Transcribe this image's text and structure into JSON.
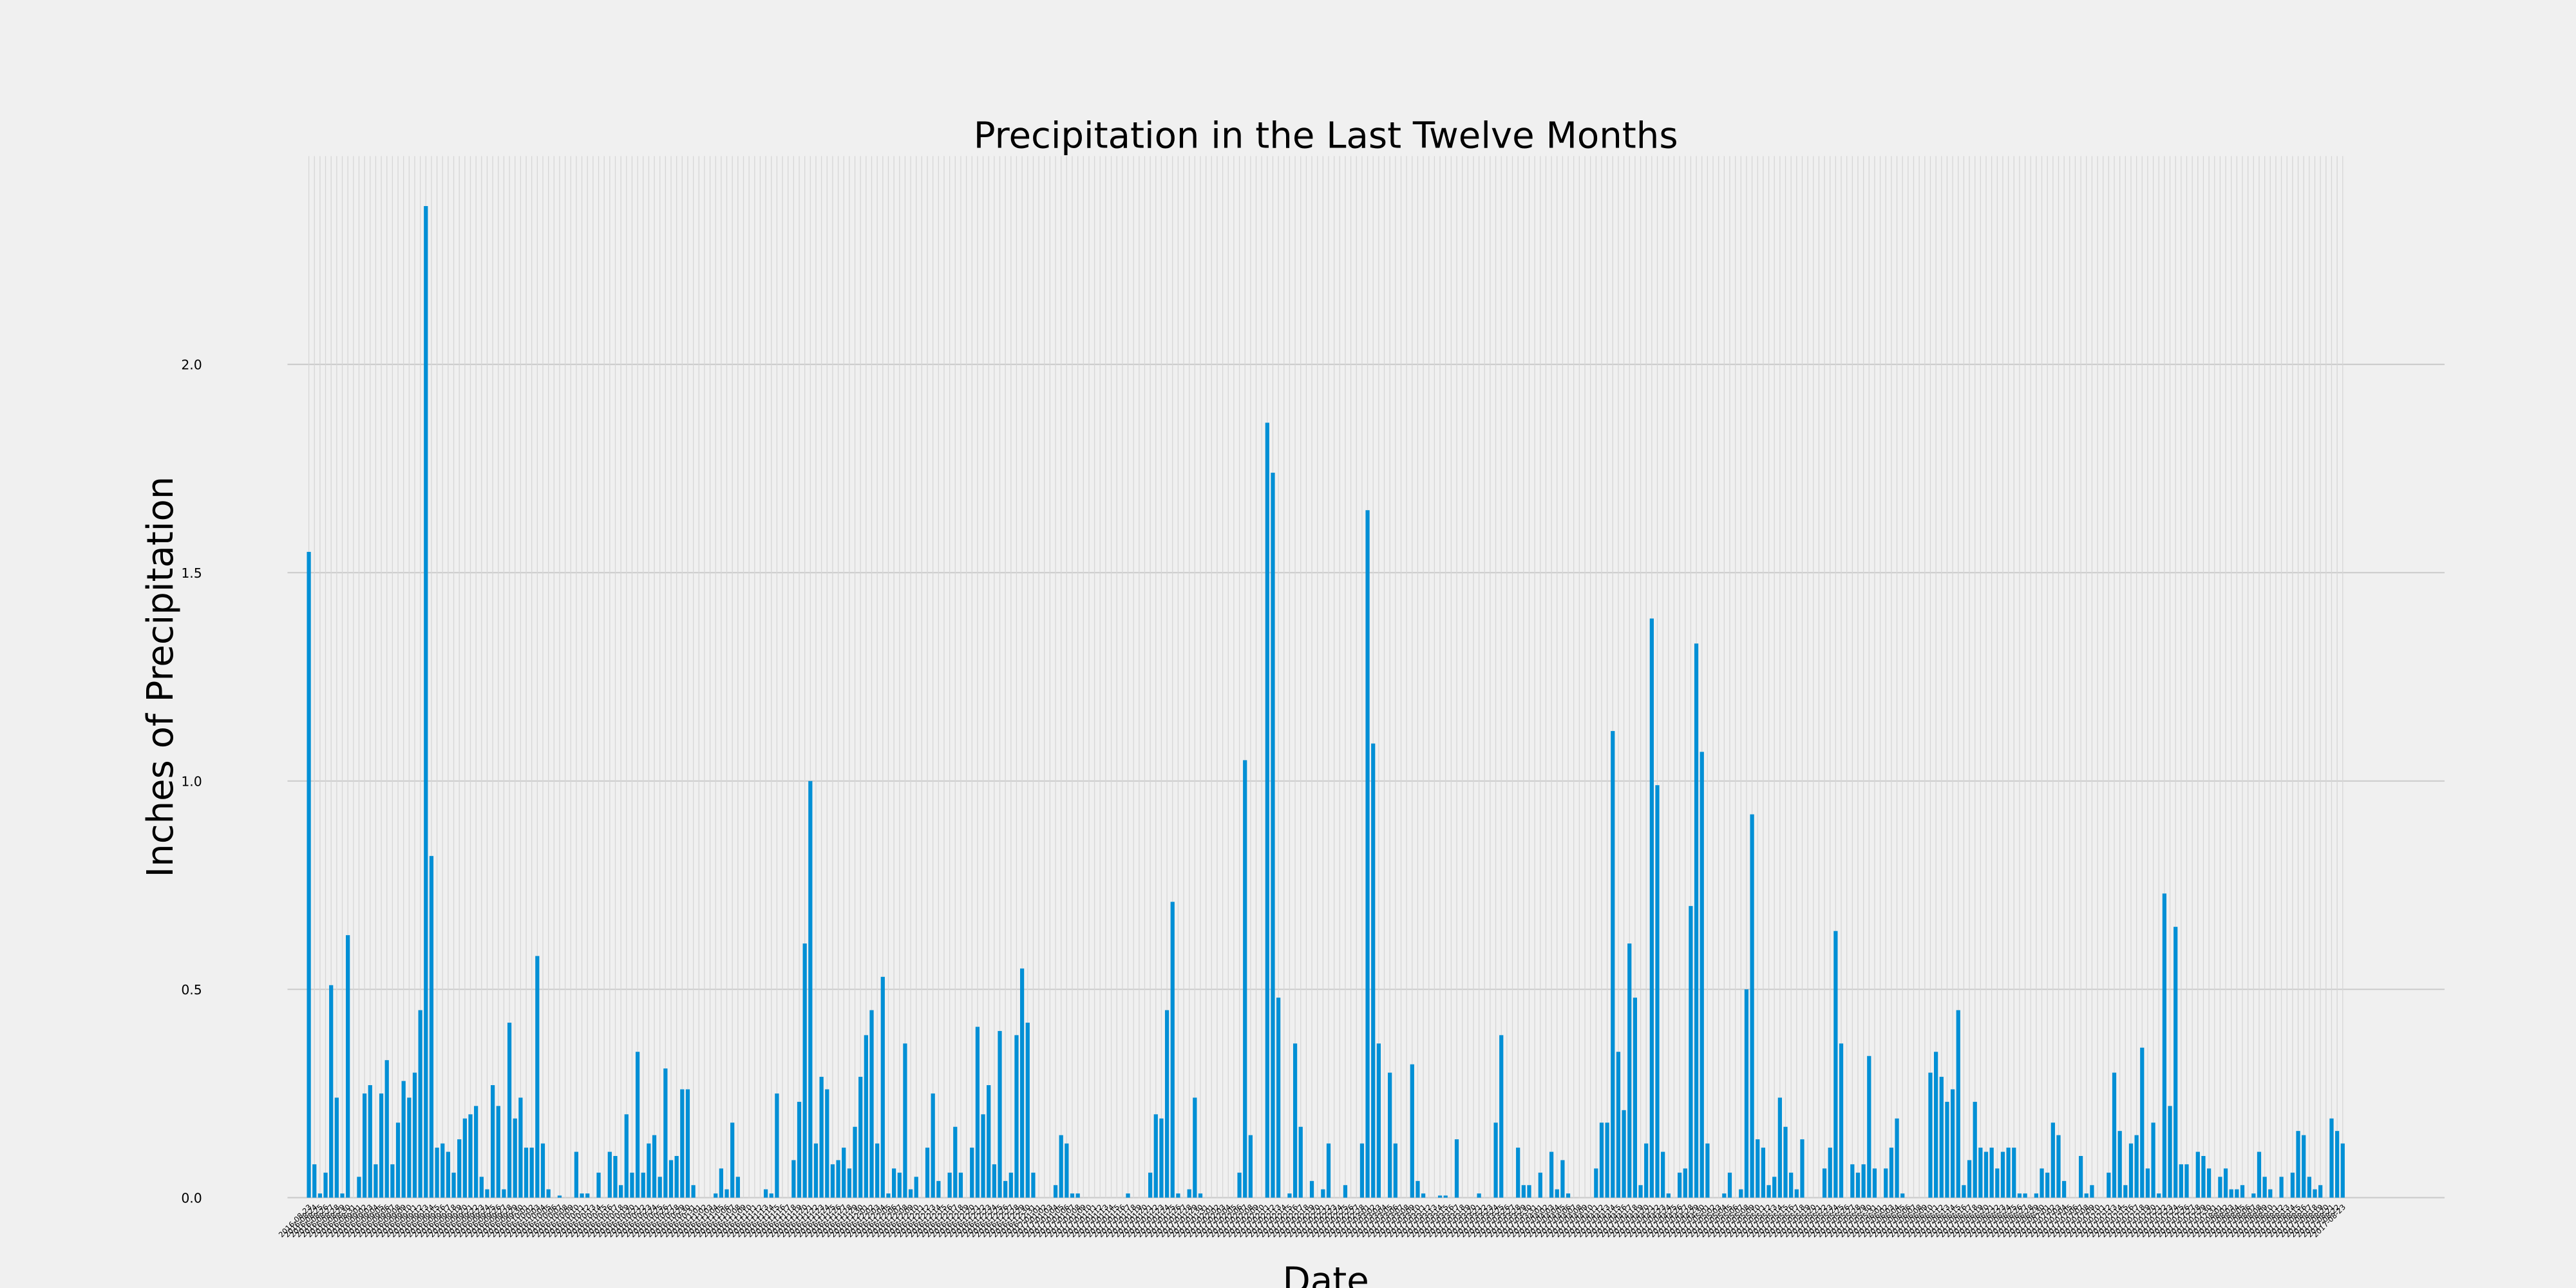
{
  "chart_data": {
    "type": "bar",
    "title": "Precipitation in the Last Twelve Months",
    "xlabel": "Date",
    "ylabel": "Inches of Precipitation",
    "color": "#008fd5",
    "grid": true,
    "ylim": [
      0,
      2.5
    ],
    "yticks": [
      {
        "value": 0,
        "label": "0.0"
      },
      {
        "value": 0.5,
        "label": "0.5"
      },
      {
        "value": 1,
        "label": "1.0"
      },
      {
        "value": 1.5,
        "label": "1.5"
      },
      {
        "value": 2,
        "label": "2.0"
      }
    ],
    "categories": [
      "2016-08-23",
      "2016-08-24",
      "2016-08-25",
      "2016-08-26",
      "2016-08-27",
      "2016-08-28",
      "2016-08-29",
      "2016-08-30",
      "2016-08-31",
      "2016-09-01",
      "2016-09-02",
      "2016-09-03",
      "2016-09-04",
      "2016-09-05",
      "2016-09-06",
      "2016-09-07",
      "2016-09-08",
      "2016-09-09",
      "2016-09-10",
      "2016-09-11",
      "2016-09-12",
      "2016-09-13",
      "2016-09-14",
      "2016-09-15",
      "2016-09-16",
      "2016-09-17",
      "2016-09-18",
      "2016-09-19",
      "2016-09-20",
      "2016-09-21",
      "2016-09-22",
      "2016-09-23",
      "2016-09-24",
      "2016-09-25",
      "2016-09-26",
      "2016-09-27",
      "2016-09-28",
      "2016-09-29",
      "2016-09-30",
      "2016-10-01",
      "2016-10-02",
      "2016-10-03",
      "2016-10-04",
      "2016-10-05",
      "2016-10-06",
      "2016-10-07",
      "2016-10-08",
      "2016-10-09",
      "2016-10-10",
      "2016-10-11",
      "2016-10-12",
      "2016-10-13",
      "2016-10-14",
      "2016-10-15",
      "2016-10-16",
      "2016-10-17",
      "2016-10-18",
      "2016-10-19",
      "2016-10-20",
      "2016-10-21",
      "2016-10-22",
      "2016-10-23",
      "2016-10-24",
      "2016-10-25",
      "2016-10-26",
      "2016-10-27",
      "2016-10-28",
      "2016-10-29",
      "2016-10-30",
      "2016-10-31",
      "2016-11-01",
      "2016-11-02",
      "2016-11-03",
      "2016-11-04",
      "2016-11-05",
      "2016-11-06",
      "2016-11-07",
      "2016-11-08",
      "2016-11-09",
      "2016-11-10",
      "2016-11-11",
      "2016-11-12",
      "2016-11-13",
      "2016-11-14",
      "2016-11-15",
      "2016-11-16",
      "2016-11-17",
      "2016-11-18",
      "2016-11-19",
      "2016-11-20",
      "2016-11-21",
      "2016-11-22",
      "2016-11-23",
      "2016-11-24",
      "2016-11-25",
      "2016-11-26",
      "2016-11-27",
      "2016-11-28",
      "2016-11-29",
      "2016-11-30",
      "2016-12-01",
      "2016-12-02",
      "2016-12-03",
      "2016-12-04",
      "2016-12-05",
      "2016-12-06",
      "2016-12-07",
      "2016-12-08",
      "2016-12-09",
      "2016-12-10",
      "2016-12-11",
      "2016-12-12",
      "2016-12-13",
      "2016-12-14",
      "2016-12-15",
      "2016-12-16",
      "2016-12-17",
      "2016-12-18",
      "2016-12-19",
      "2016-12-20",
      "2016-12-21",
      "2016-12-22",
      "2016-12-23",
      "2016-12-24",
      "2016-12-25",
      "2016-12-26",
      "2016-12-27",
      "2016-12-28",
      "2016-12-29",
      "2016-12-30",
      "2016-12-31",
      "2017-01-01",
      "2017-01-02",
      "2017-01-03",
      "2017-01-04",
      "2017-01-05",
      "2017-01-06",
      "2017-01-07",
      "2017-01-08",
      "2017-01-09",
      "2017-01-10",
      "2017-01-11",
      "2017-01-12",
      "2017-01-13",
      "2017-01-14",
      "2017-01-15",
      "2017-01-16",
      "2017-01-17",
      "2017-01-18",
      "2017-01-19",
      "2017-01-20",
      "2017-01-21",
      "2017-01-22",
      "2017-01-23",
      "2017-01-24",
      "2017-01-25",
      "2017-01-26",
      "2017-01-27",
      "2017-01-28",
      "2017-01-29",
      "2017-01-30",
      "2017-01-31",
      "2017-02-01",
      "2017-02-02",
      "2017-02-03",
      "2017-02-04",
      "2017-02-05",
      "2017-02-06",
      "2017-02-07",
      "2017-02-08",
      "2017-02-09",
      "2017-02-10",
      "2017-02-11",
      "2017-02-12",
      "2017-02-13",
      "2017-02-14",
      "2017-02-15",
      "2017-02-16",
      "2017-02-17",
      "2017-02-18",
      "2017-02-19",
      "2017-02-20",
      "2017-02-21",
      "2017-02-22",
      "2017-02-23",
      "2017-02-24",
      "2017-02-25",
      "2017-02-26",
      "2017-02-27",
      "2017-02-28",
      "2017-03-01",
      "2017-03-02",
      "2017-03-03",
      "2017-03-04",
      "2017-03-05",
      "2017-03-06",
      "2017-03-07",
      "2017-03-08",
      "2017-03-09",
      "2017-03-10",
      "2017-03-11",
      "2017-03-12",
      "2017-03-13",
      "2017-03-14",
      "2017-03-15",
      "2017-03-16",
      "2017-03-17",
      "2017-03-18",
      "2017-03-19",
      "2017-03-20",
      "2017-03-21",
      "2017-03-22",
      "2017-03-23",
      "2017-03-24",
      "2017-03-25",
      "2017-03-26",
      "2017-03-27",
      "2017-03-28",
      "2017-03-29",
      "2017-03-30",
      "2017-03-31",
      "2017-04-01",
      "2017-04-02",
      "2017-04-03",
      "2017-04-04",
      "2017-04-05",
      "2017-04-06",
      "2017-04-07",
      "2017-04-08",
      "2017-04-09",
      "2017-04-10",
      "2017-04-11",
      "2017-04-12",
      "2017-04-13",
      "2017-04-14",
      "2017-04-15",
      "2017-04-16",
      "2017-04-17",
      "2017-04-18",
      "2017-04-19",
      "2017-04-20",
      "2017-04-21",
      "2017-04-22",
      "2017-04-23",
      "2017-04-24",
      "2017-04-25",
      "2017-04-26",
      "2017-04-27",
      "2017-04-28",
      "2017-04-29",
      "2017-04-30",
      "2017-05-01",
      "2017-05-02",
      "2017-05-03",
      "2017-05-04",
      "2017-05-05",
      "2017-05-06",
      "2017-05-07",
      "2017-05-08",
      "2017-05-09",
      "2017-05-10",
      "2017-05-11",
      "2017-05-12",
      "2017-05-13",
      "2017-05-14",
      "2017-05-15",
      "2017-05-16",
      "2017-05-17",
      "2017-05-18",
      "2017-05-19",
      "2017-05-20",
      "2017-05-21",
      "2017-05-22",
      "2017-05-23",
      "2017-05-24",
      "2017-05-25",
      "2017-05-26",
      "2017-05-27",
      "2017-05-28",
      "2017-05-29",
      "2017-05-30",
      "2017-05-31",
      "2017-06-01",
      "2017-06-02",
      "2017-06-03",
      "2017-06-04",
      "2017-06-05",
      "2017-06-06",
      "2017-06-07",
      "2017-06-08",
      "2017-06-09",
      "2017-06-10",
      "2017-06-11",
      "2017-06-12",
      "2017-06-13",
      "2017-06-14",
      "2017-06-15",
      "2017-06-16",
      "2017-06-17",
      "2017-06-18",
      "2017-06-19",
      "2017-06-20",
      "2017-06-21",
      "2017-06-22",
      "2017-06-23",
      "2017-06-24",
      "2017-06-25",
      "2017-06-26",
      "2017-06-27",
      "2017-06-28",
      "2017-06-29",
      "2017-06-30",
      "2017-07-01",
      "2017-07-02",
      "2017-07-03",
      "2017-07-04",
      "2017-07-05",
      "2017-07-06",
      "2017-07-07",
      "2017-07-08",
      "2017-07-09",
      "2017-07-10",
      "2017-07-11",
      "2017-07-12",
      "2017-07-13",
      "2017-07-14",
      "2017-07-15",
      "2017-07-16",
      "2017-07-17",
      "2017-07-18",
      "2017-07-19",
      "2017-07-20",
      "2017-07-21",
      "2017-07-22",
      "2017-07-23",
      "2017-07-24",
      "2017-07-25",
      "2017-07-26",
      "2017-07-27",
      "2017-07-28",
      "2017-07-29",
      "2017-07-30",
      "2017-07-31",
      "2017-08-01",
      "2017-08-02",
      "2017-08-03",
      "2017-08-04",
      "2017-08-05",
      "2017-08-06",
      "2017-08-07",
      "2017-08-08",
      "2017-08-09",
      "2017-08-10",
      "2017-08-11",
      "2017-08-12",
      "2017-08-13",
      "2017-08-14",
      "2017-08-15",
      "2017-08-16",
      "2017-08-17",
      "2017-08-18",
      "2017-08-19",
      "2017-08-20",
      "2017-08-21",
      "2017-08-22",
      "2017-08-23"
    ],
    "values": [
      1.55,
      0.08,
      0.01,
      0.06,
      0.51,
      0.24,
      0.01,
      0.63,
      0,
      0.05,
      0.25,
      0.27,
      0.08,
      0.25,
      0.33,
      0.08,
      0.18,
      0.28,
      0.24,
      0.3,
      0.45,
      2.38,
      0.82,
      0.12,
      0.13,
      0.11,
      0.06,
      0.14,
      0.19,
      0.2,
      0.22,
      0.05,
      0.02,
      0.27,
      0.22,
      0.02,
      0.42,
      0.19,
      0.24,
      0.12,
      0.12,
      0.58,
      0.13,
      0.02,
      0,
      0.005,
      0,
      0,
      0.11,
      0.01,
      0.01,
      0,
      0.06,
      0,
      0.11,
      0.1,
      0.03,
      0.2,
      0.06,
      0.35,
      0.06,
      0.13,
      0.15,
      0.05,
      0.31,
      0.09,
      0.1,
      0.26,
      0.26,
      0.03,
      0,
      0,
      0,
      0.01,
      0.07,
      0.02,
      0.18,
      0.05,
      0,
      0,
      0,
      0,
      0.02,
      0.01,
      0.25,
      0,
      0,
      0.09,
      0.23,
      0.61,
      1,
      0.13,
      0.29,
      0.26,
      0.08,
      0.09,
      0.12,
      0.07,
      0.17,
      0.29,
      0.39,
      0.45,
      0.13,
      0.53,
      0.01,
      0.07,
      0.06,
      0.37,
      0.02,
      0.05,
      0,
      0.12,
      0.25,
      0.04,
      0,
      0.06,
      0.17,
      0.06,
      0,
      0.12,
      0.41,
      0.2,
      0.27,
      0.08,
      0.4,
      0.04,
      0.06,
      0.39,
      0.55,
      0.42,
      0.06,
      0,
      0,
      0,
      0.03,
      0.15,
      0.13,
      0.01,
      0.01,
      0,
      0,
      0,
      0,
      0,
      0,
      0,
      0,
      0.01,
      0,
      0,
      0,
      0.06,
      0.2,
      0.19,
      0.45,
      0.71,
      0.01,
      0,
      0.02,
      0.24,
      0.01,
      0,
      0,
      0,
      0,
      0,
      0,
      0.06,
      1.05,
      0.15,
      0,
      0,
      1.86,
      1.74,
      0.48,
      0,
      0.01,
      0.37,
      0.17,
      0,
      0.04,
      0,
      0.02,
      0.13,
      0,
      0,
      0.03,
      0,
      0,
      0.13,
      1.65,
      1.09,
      0.37,
      0,
      0.3,
      0.13,
      0,
      0,
      0.32,
      0.04,
      0.01,
      0,
      0,
      0.005,
      0.005,
      0,
      0.14,
      0,
      0,
      0,
      0.01,
      0,
      0,
      0.18,
      0.39,
      0,
      0,
      0.12,
      0.03,
      0.03,
      0,
      0.06,
      0,
      0.11,
      0.02,
      0.09,
      0.01,
      0,
      0,
      0,
      0,
      0.07,
      0.18,
      0.18,
      1.12,
      0.35,
      0.21,
      0.61,
      0.48,
      0.03,
      0.13,
      1.39,
      0.99,
      0.11,
      0.01,
      0,
      0.06,
      0.07,
      0.7,
      1.33,
      1.07,
      0.13,
      0,
      0,
      0.01,
      0.06,
      0,
      0.02,
      0.5,
      0.92,
      0.14,
      0.12,
      0.03,
      0.05,
      0.24,
      0.17,
      0.06,
      0.02,
      0.14,
      0,
      0,
      0,
      0.07,
      0.12,
      0.64,
      0.37,
      0,
      0.08,
      0.06,
      0.08,
      0.34,
      0.07,
      0,
      0.07,
      0.12,
      0.19,
      0.01,
      0,
      0,
      0,
      0,
      0.3,
      0.35,
      0.29,
      0.23,
      0.26,
      0.45,
      0.03,
      0.09,
      0.23,
      0.12,
      0.11,
      0.12,
      0.07,
      0.11,
      0.12,
      0.12,
      0.01,
      0.01,
      0,
      0.01,
      0.07,
      0.06,
      0.18,
      0.15,
      0.04,
      0,
      0,
      0.1,
      0.01,
      0.03,
      0,
      0,
      0.06,
      0.3,
      0.16,
      0.03,
      0.13,
      0.15,
      0.36,
      0.07,
      0.18,
      0.01,
      0.73,
      0.22,
      0.65,
      0.08,
      0.08,
      0,
      0.11,
      0.1,
      0.07,
      0,
      0.05,
      0.07,
      0.02,
      0.02,
      0.03,
      0,
      0.01,
      0.11,
      0.05,
      0.02,
      0,
      0.05,
      0,
      0.06,
      0.16,
      0.15,
      0.05,
      0.02,
      0.03,
      0,
      0.19,
      0.16,
      0.13
    ]
  }
}
